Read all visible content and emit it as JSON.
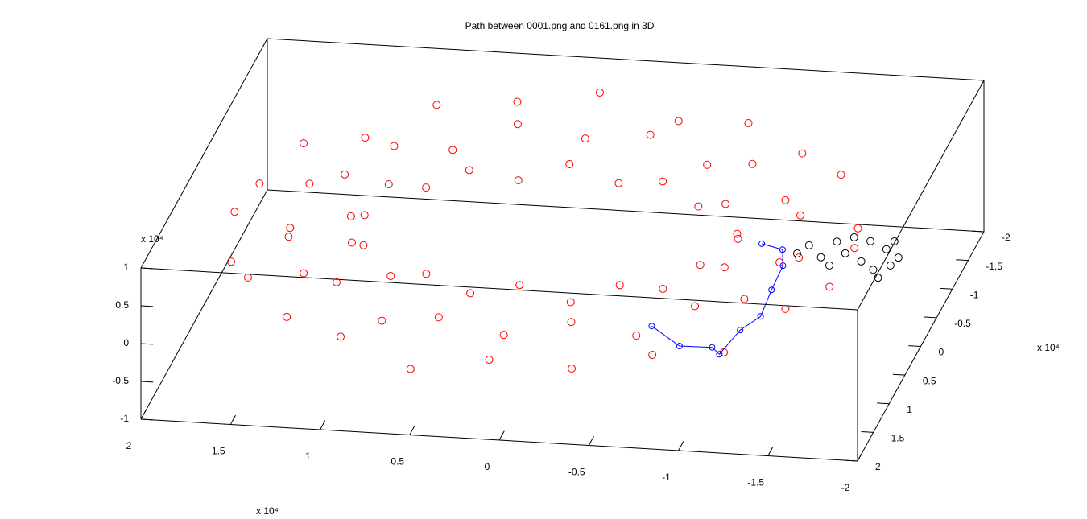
{
  "chart_data": {
    "type": "scatter3d",
    "title": "Path between 0001.png and 0161.png in 3D",
    "xlim": [
      2,
      -2
    ],
    "ylim": [
      2,
      -2
    ],
    "zlim": [
      -1,
      1
    ],
    "xticks": [
      2,
      1.5,
      1,
      0.5,
      0,
      -0.5,
      -1,
      -1.5,
      -2
    ],
    "yticks": [
      -2,
      -1.5,
      -1,
      -0.5,
      0,
      0.5,
      1,
      1.5,
      2
    ],
    "zticks": [
      -1,
      -0.5,
      0,
      0.5,
      1
    ],
    "x_scale": "x 10⁴",
    "y_scale": "x 10⁴",
    "z_scale": "x 10⁴",
    "grid": false,
    "series": [
      {
        "color": "#ff0000",
        "marker": "circle",
        "line": false,
        "x": [
          1.18,
          1.14,
          1.04,
          0.86,
          0.64,
          0.38,
          0.1,
          -0.18,
          -0.44,
          -0.66,
          -0.84,
          -0.94,
          -0.98,
          -0.94,
          -0.84,
          -0.66,
          -0.44,
          -0.18,
          0.1,
          0.38,
          0.64,
          0.86,
          1.04,
          1.14,
          1.52,
          1.47,
          1.33,
          1.1,
          0.81,
          0.47,
          0.1,
          -0.27,
          -0.61,
          -0.9,
          -1.13,
          -1.27,
          -1.32,
          -1.27,
          -1.13,
          -0.9,
          -0.61,
          -0.27,
          0.1,
          0.47,
          0.81,
          1.1,
          1.33,
          1.47,
          1.83,
          1.77,
          1.6,
          1.32,
          0.97,
          0.55,
          0.1,
          -0.35,
          -0.77,
          -1.12,
          -1.4,
          -1.57,
          -1.63,
          -1.57,
          -1.4,
          -1.12,
          -0.77,
          -0.35,
          0.1,
          0.55,
          0.97,
          1.32,
          1.6,
          1.77
        ],
        "y": [
          0,
          0.2,
          0.4,
          0.56,
          0.68,
          0.76,
          0.79,
          0.76,
          0.68,
          0.56,
          0.4,
          0.2,
          0,
          -0.2,
          -0.4,
          -0.56,
          -0.68,
          -0.76,
          -0.79,
          -0.76,
          -0.68,
          -0.56,
          -0.4,
          -0.2,
          0,
          0.33,
          0.65,
          0.91,
          1.12,
          1.25,
          1.29,
          1.25,
          1.12,
          0.91,
          0.65,
          0.33,
          0,
          -0.33,
          -0.65,
          -0.91,
          -1.12,
          -1.25,
          -1.29,
          -1.25,
          -1.12,
          -0.91,
          -0.65,
          -0.33,
          0,
          0.45,
          0.88,
          1.24,
          1.52,
          1.69,
          1.75,
          1.69,
          1.52,
          1.24,
          0.88,
          0.45,
          0,
          -0.45,
          -0.88,
          -1.24,
          -1.52,
          -1.69,
          -1.75,
          -1.69,
          -1.52,
          -1.24,
          -0.88,
          -0.45
        ],
        "z": [
          0.28,
          0.09,
          0.22,
          -0.04,
          0.11,
          -0.05,
          0.12,
          -0.09,
          0.11,
          0,
          0.22,
          0.05,
          0.28,
          0.19,
          0.42,
          0.24,
          0.45,
          0.33,
          0.52,
          0.29,
          0.45,
          0.28,
          0.42,
          0.15,
          0.08,
          0.22,
          0,
          0.11,
          -0.2,
          -0.01,
          -0.16,
          0.03,
          -0.2,
          0.07,
          0,
          0.26,
          0.08,
          0.38,
          0.32,
          0.57,
          0.36,
          0.61,
          0.48,
          0.65,
          0.36,
          0.53,
          0.32,
          0.42,
          0.25,
          -0.06,
          0.08,
          -0.13,
          -0.13,
          -0.37,
          -0.14,
          -0.24,
          -0.13,
          -0.26,
          0.08,
          0.07,
          0.25,
          0.16,
          0.52,
          0.49,
          0.63,
          0.47,
          0.74,
          0.6,
          0.63,
          0.36,
          0.52,
          0.29
        ]
      },
      {
        "color": "#000000",
        "marker": "circle",
        "line": false,
        "x": [
          -1.32,
          -1.46,
          -1.54,
          -1.64,
          -1.75,
          -1.82,
          -1.79,
          -1.42,
          -1.49,
          -1.65,
          -1.84,
          -1.28,
          -1.54,
          -1.74,
          -1.77
        ],
        "y": [
          -0.32,
          -0.41,
          -0.5,
          -0.45,
          -0.33,
          -0.06,
          0.16,
          -0.13,
          0,
          -0.1,
          -0.2,
          -0.17,
          -0.22,
          0.03,
          -0.47
        ],
        "z": [
          0,
          0,
          0,
          0,
          0,
          0,
          0,
          0,
          0,
          0,
          0,
          0,
          0,
          0,
          0
        ]
      },
      {
        "color": "#0000ff",
        "marker": "circle",
        "line": true,
        "x": [
          -0.71,
          -0.92,
          -1.1,
          -1.16,
          -1.2,
          -1.27,
          -1.25,
          -1.24,
          -1.19,
          -1.06
        ],
        "y": [
          1.2,
          1.51,
          1.5,
          1.61,
          1.18,
          0.93,
          0.47,
          0.05,
          -0.22,
          -0.3
        ],
        "z": [
          0,
          0,
          0,
          0,
          0,
          0,
          0,
          0,
          0,
          0
        ]
      }
    ]
  }
}
